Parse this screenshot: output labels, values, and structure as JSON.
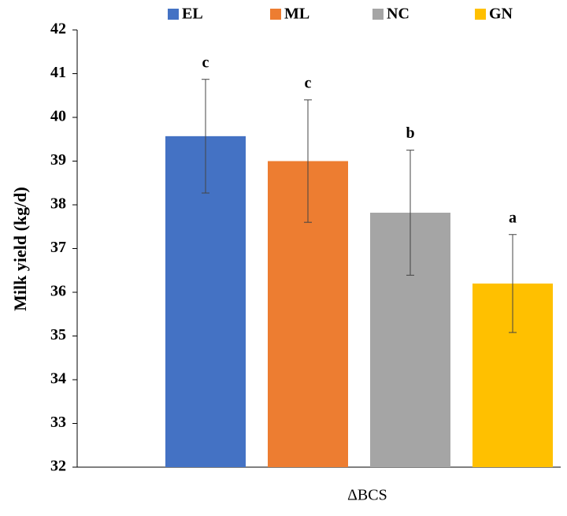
{
  "chart_data": {
    "type": "bar",
    "y_label": "Milk yield (kg/d)",
    "categories": [
      "ΔBCS"
    ],
    "series": [
      {
        "name": "EL",
        "color": "#4472c4",
        "values": [
          39.57
        ],
        "errors": [
          1.3
        ],
        "annotations": [
          "c"
        ]
      },
      {
        "name": "ML",
        "color": "#ed7d31",
        "values": [
          39.0
        ],
        "errors": [
          1.4
        ],
        "annotations": [
          "c"
        ]
      },
      {
        "name": "NC",
        "color": "#a5a5a5",
        "values": [
          37.82
        ],
        "errors": [
          1.43
        ],
        "annotations": [
          "b"
        ]
      },
      {
        "name": "GN",
        "color": "#ffc000",
        "values": [
          36.2
        ],
        "errors": [
          1.12
        ],
        "annotations": [
          "a"
        ]
      }
    ],
    "ylim": [
      32,
      42
    ],
    "yticks": [
      32,
      33,
      34,
      35,
      36,
      37,
      38,
      39,
      40,
      41,
      42
    ],
    "legend": "top",
    "grid": false
  }
}
